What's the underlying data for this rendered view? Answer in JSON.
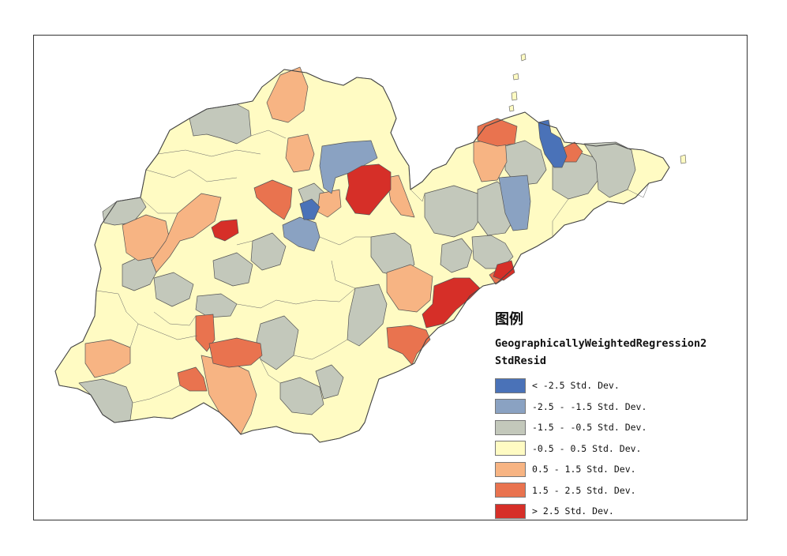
{
  "legend": {
    "title": "图例",
    "layer_name_line1": "GeographicallyWeightedRegression2",
    "layer_name_line2": "StdResid",
    "classes": [
      {
        "label": "< -2.5 Std. Dev.",
        "color": "#4a72b8"
      },
      {
        "label": "-2.5 - -1.5 Std. Dev.",
        "color": "#8aa2c2"
      },
      {
        "label": "-1.5 - -0.5 Std. Dev.",
        "color": "#c3c8bb"
      },
      {
        "label": "-0.5 - 0.5 Std. Dev.",
        "color": "#fffbc3"
      },
      {
        "label": "0.5 - 1.5 Std. Dev.",
        "color": "#f7b483"
      },
      {
        "label": "1.5 - 2.5 Std. Dev.",
        "color": "#e9734f"
      },
      {
        "label": "> 2.5 Std. Dev.",
        "color": "#d62f28"
      }
    ]
  }
}
